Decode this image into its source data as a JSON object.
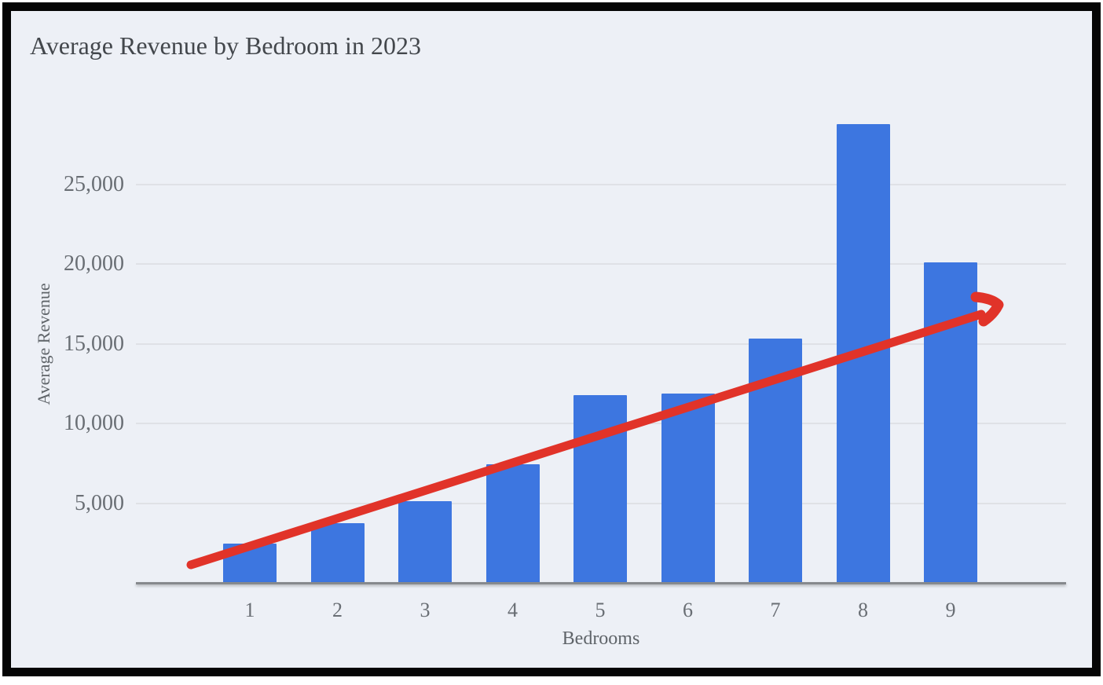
{
  "window": {
    "frame_border_color": "#050505",
    "background_color": "#edf0f6"
  },
  "chart_data": {
    "type": "bar",
    "title": "Average Revenue by Bedroom in 2023",
    "xlabel": "Bedrooms",
    "ylabel": "Average Revenue",
    "categories": [
      "1",
      "2",
      "3",
      "4",
      "5",
      "6",
      "7",
      "8",
      "9"
    ],
    "values": [
      2450,
      3750,
      5100,
      7450,
      11750,
      11850,
      15300,
      28750,
      20100
    ],
    "y_ticks": [
      5000,
      10000,
      15000,
      20000,
      25000
    ],
    "y_tick_labels": [
      "5,000",
      "10,000",
      "15,000",
      "20,000",
      "25,000"
    ],
    "ylim": [
      0,
      30000
    ],
    "grid": true,
    "legend": "none",
    "bar_color": "#3d76e0",
    "annotation": {
      "type": "trend-arrow",
      "color": "#e13329",
      "description": "thick red upward trend arrow from bedroom 1 to bedroom 9"
    }
  }
}
